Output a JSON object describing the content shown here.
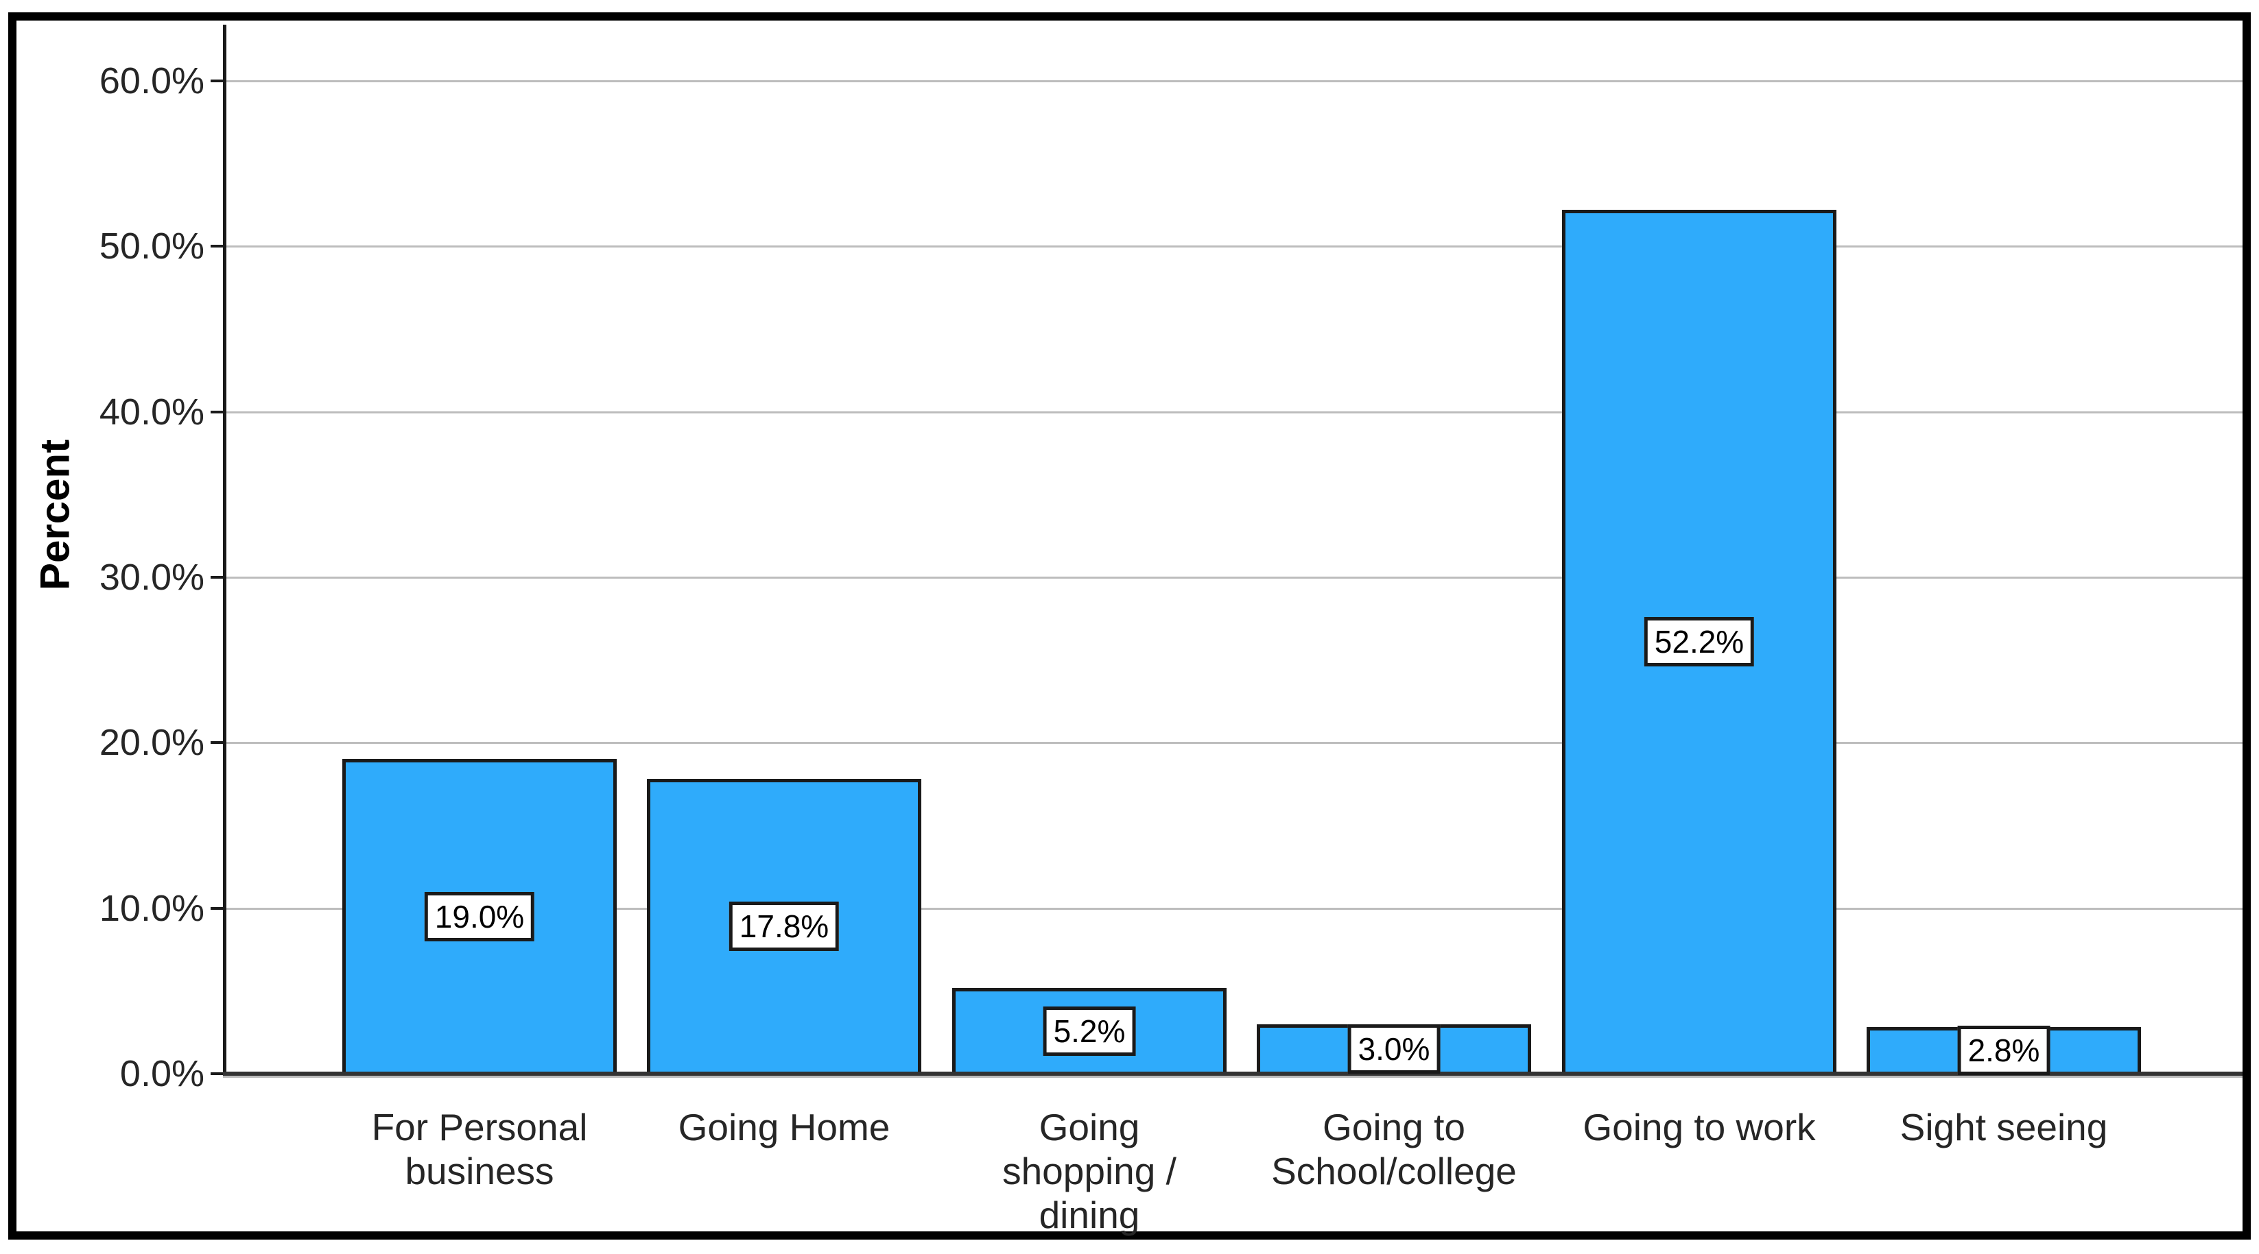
{
  "chart_data": {
    "type": "bar",
    "title": "",
    "xlabel": "",
    "ylabel": "Percent",
    "categories": [
      "For Personal business",
      "Going Home",
      "Going shopping / dining",
      "Going to School/college",
      "Going to work",
      "Sight seeing"
    ],
    "category_lines": [
      [
        "For Personal",
        "business"
      ],
      [
        "Going Home"
      ],
      [
        "Going",
        "shopping /",
        "dining"
      ],
      [
        "Going to",
        "School/college"
      ],
      [
        "Going to work"
      ],
      [
        "Sight seeing"
      ]
    ],
    "values": [
      19.0,
      17.8,
      5.2,
      3.0,
      52.2,
      2.8
    ],
    "value_labels": [
      "19.0%",
      "17.8%",
      "5.2%",
      "3.0%",
      "52.2%",
      "2.8%"
    ],
    "y_tick_labels": [
      "0.0%",
      "10.0%",
      "20.0%",
      "30.0%",
      "40.0%",
      "50.0%",
      "60.0%"
    ],
    "y_tick_values": [
      0,
      10,
      20,
      30,
      40,
      50,
      60
    ],
    "ylim": [
      0,
      63.4
    ],
    "grid": "horizontal",
    "legend": "none",
    "colors": {
      "bar_fill": "#2FABFB",
      "bar_border": "#1A1A1A",
      "gridline": "#BDBDBD",
      "axis": "#1A1A1A",
      "baseline": "#333333",
      "text": "#262626",
      "value_box_bg": "#FFFFFF",
      "value_box_border": "#1A1A1A",
      "figure_border": "#000000",
      "background": "#FFFFFF"
    }
  }
}
